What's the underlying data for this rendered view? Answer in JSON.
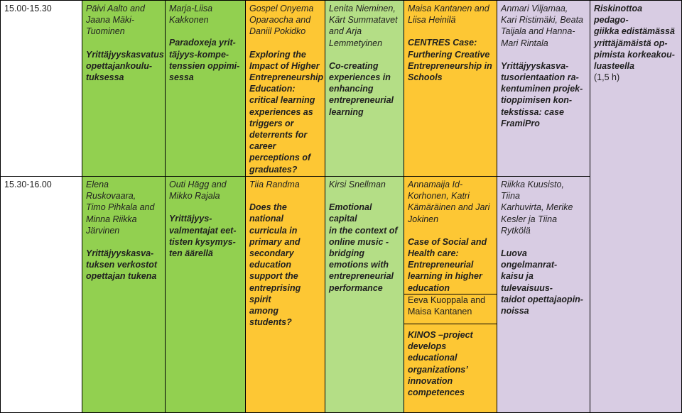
{
  "colors": {
    "green": "#92D050",
    "lightgreen": "#B4DE86",
    "orange": "#FDC734",
    "purple": "#D8CCE3",
    "white": "#FFFFFF"
  },
  "times": [
    "15.00-15.30",
    "15.30-16.00"
  ],
  "col1": {
    "r1": {
      "authors": [
        "Päivi Aalto and",
        "Jaana Mäki-",
        "Tuominen"
      ],
      "title": [
        "Yrittäjyyskasvatus",
        "opettajankoulu-",
        "tuksessa"
      ]
    },
    "r2": {
      "authors": [
        "Elena Ruskovaara,",
        "Timo Pihkala and",
        "Minna Riikka",
        "Järvinen"
      ],
      "title": [
        "Yrittäjyyskasva-",
        "tuksen verkostot",
        "opettajan tukena"
      ]
    }
  },
  "col2": {
    "r1": {
      "authors": [
        "Marja-Liisa",
        "Kakkonen"
      ],
      "title": [
        "Paradoxeja yrit-",
        "täjyys-kompe-",
        "tenssien oppimi-",
        "sessa"
      ]
    },
    "r2": {
      "authors": [
        "Outi Hägg and",
        "Mikko Rajala"
      ],
      "title": [
        "Yrittäjyys-",
        "valmentajat eet-",
        "tisten kysymys-",
        "ten äärellä"
      ]
    }
  },
  "col3": {
    "r1": {
      "authors": [
        "Gospel Onyema",
        "Oparaocha and",
        "Daniil Pokidko"
      ],
      "title": [
        "Exploring the",
        "Impact of Higher",
        "Entrepreneurship",
        "Education:",
        "critical learning",
        "experiences as",
        "triggers or",
        "deterrents for",
        "career",
        "perceptions of",
        "graduates?"
      ]
    },
    "r2": {
      "authors": [
        "Tiia Randma"
      ],
      "title": [
        "Does the national",
        "curricula in",
        "primary and",
        "secondary",
        "education",
        "support the",
        "entreprising spirit",
        "among students?"
      ]
    }
  },
  "col4": {
    "r1": {
      "authors": [
        "Lenita Nieminen,",
        "Kärt Summatavet",
        "and Arja",
        "Lemmetyinen"
      ],
      "title": [
        "Co-creating",
        "experiences in",
        "enhancing",
        "entrepreneurial",
        "learning"
      ]
    },
    "r2": {
      "authors": [
        "Kirsi Snellman"
      ],
      "title": [
        "Emotional capital",
        "in the context of",
        "online music -",
        "bridging",
        "emotions with",
        "entrepreneurial",
        "performance"
      ]
    }
  },
  "col5": {
    "r1": {
      "authors": [
        "Maisa Kantanen and",
        "Liisa Heinilä"
      ],
      "title": [
        "CENTRES Case:",
        "Furthering Creative",
        "Entrepreneurship in",
        "Schools"
      ]
    },
    "r2": {
      "authors": [
        "Annamaija Id-",
        "Korhonen, Katri",
        "Kämäräinen and Jari",
        "Jokinen"
      ],
      "title": [
        "Case of Social and",
        "Health care:",
        "Entrepreneurial",
        "learning in higher",
        "education"
      ],
      "authors2": [
        "Eeva Kuoppala and",
        "Maisa Kantanen"
      ],
      "title2": [
        "KINOS –project",
        "develops",
        "educational",
        "organizations’",
        "innovation",
        "competences"
      ]
    }
  },
  "col6": {
    "r1": {
      "authors": [
        "Anmari Viljamaa,",
        "Kari Ristimäki, Beata",
        "Taijala and Hanna-",
        "Mari Rintala"
      ],
      "title": [
        "Yrittäjyyskasva-",
        "tusorientaation ra-",
        "kentuminen projek-",
        "tioppimisen kon-",
        "tekstissa: case",
        "FramiPro"
      ]
    },
    "r2": {
      "authors": [
        "Riikka Kuusisto, Tiina",
        "Karhuvirta, Merike",
        "Kesler ja Tiina",
        "Rytkölä"
      ],
      "title": [
        "Luova ongelmanrat-",
        "kaisu ja tulevaisuus-",
        "taidot opettajaopin-",
        "noissa"
      ]
    }
  },
  "col7": {
    "title": [
      "Riskinottoa pedago-",
      "giikka edistämässä",
      "yrittäjämäistä op-",
      "pimista korkeakou-",
      "luasteella"
    ],
    "duration": "(1,5 h)"
  }
}
